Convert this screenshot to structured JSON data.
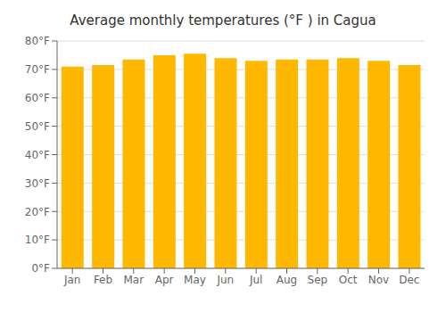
{
  "chart_data": {
    "type": "bar",
    "title": "Average monthly temperatures (°F ) in Cagua",
    "categories": [
      "Jan",
      "Feb",
      "Mar",
      "Apr",
      "May",
      "Jun",
      "Jul",
      "Aug",
      "Sep",
      "Oct",
      "Nov",
      "Dec"
    ],
    "values": [
      71.0,
      71.5,
      73.5,
      75.0,
      75.5,
      74.0,
      73.0,
      73.5,
      73.5,
      74.0,
      73.0,
      71.5
    ],
    "color": "#FFB800",
    "ylim": [
      0,
      80
    ],
    "yticks": [
      {
        "value": 0,
        "label": "0°F"
      },
      {
        "value": 10,
        "label": "10°F"
      },
      {
        "value": 20,
        "label": "20°F"
      },
      {
        "value": 30,
        "label": "30°F"
      },
      {
        "value": 40,
        "label": "40°F"
      },
      {
        "value": 50,
        "label": "50°F"
      },
      {
        "value": 60,
        "label": "60°F"
      },
      {
        "value": 70,
        "label": "70°F"
      },
      {
        "value": 80,
        "label": "80°F"
      }
    ],
    "grid": true
  }
}
